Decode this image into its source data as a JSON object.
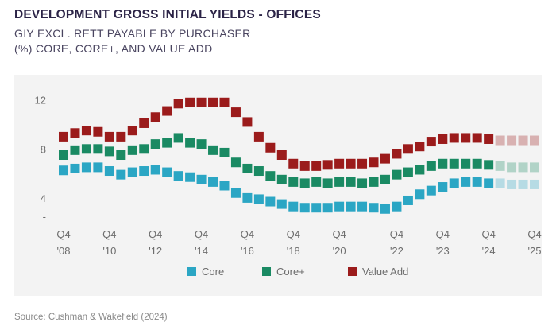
{
  "header": {
    "title": "DEVELOPMENT GROSS INITIAL YIELDS - OFFICES",
    "subtitle_line1": "GIY EXCL. RETT PAYABLE BY PURCHASER",
    "subtitle_line2": "(%) CORE, CORE+, AND VALUE ADD"
  },
  "footer": {
    "source": "Source: Cushman & Wakefield (2024)"
  },
  "chart_data": {
    "type": "scatter",
    "title": "",
    "xlabel": "",
    "ylabel": "",
    "ylim": [
      2.5,
      12.5
    ],
    "yticks": [
      {
        "value": 12,
        "label": "12"
      },
      {
        "value": 8,
        "label": "8"
      },
      {
        "value": 4,
        "label": "4"
      },
      {
        "value": 2.5,
        "label": "-"
      }
    ],
    "xticks": [
      {
        "index": 0,
        "label": [
          "Q4",
          "'08"
        ]
      },
      {
        "index": 4,
        "label": [
          "Q4",
          "'10"
        ]
      },
      {
        "index": 8,
        "label": [
          "Q4",
          "'12"
        ]
      },
      {
        "index": 12,
        "label": [
          "Q4",
          "'14"
        ]
      },
      {
        "index": 16,
        "label": [
          "Q4",
          "'16"
        ]
      },
      {
        "index": 20,
        "label": [
          "Q4",
          "'18"
        ]
      },
      {
        "index": 24,
        "label": [
          "Q4",
          "'20"
        ]
      },
      {
        "index": 29,
        "label": [
          "Q4",
          "'22"
        ]
      },
      {
        "index": 33,
        "label": [
          "Q4",
          "'23"
        ]
      },
      {
        "index": 37,
        "label": [
          "Q4",
          "'24"
        ]
      },
      {
        "index": 41,
        "label": [
          "Q4",
          "'25"
        ]
      }
    ],
    "forecast_start_index": 38,
    "grid": false,
    "legend_position": "bottom",
    "series": [
      {
        "name": "Core",
        "color": "#2ba6c4",
        "values": [
          6.25,
          6.4,
          6.5,
          6.5,
          6.2,
          5.9,
          6.1,
          6.2,
          6.3,
          6.1,
          5.8,
          5.7,
          5.5,
          5.3,
          5.0,
          4.4,
          4.0,
          3.9,
          3.7,
          3.5,
          3.3,
          3.2,
          3.2,
          3.2,
          3.3,
          3.3,
          3.3,
          3.2,
          3.1,
          3.3,
          3.8,
          4.3,
          4.6,
          4.9,
          5.2,
          5.3,
          5.3,
          5.2,
          5.2,
          5.1,
          5.1,
          5.1
        ]
      },
      {
        "name": "Core+",
        "color": "#1a8a63",
        "values": [
          7.5,
          7.9,
          8.0,
          8.0,
          7.8,
          7.5,
          7.9,
          8.0,
          8.4,
          8.5,
          8.9,
          8.5,
          8.4,
          7.9,
          7.7,
          6.9,
          6.4,
          6.2,
          5.8,
          5.5,
          5.3,
          5.2,
          5.3,
          5.2,
          5.3,
          5.3,
          5.2,
          5.3,
          5.5,
          5.9,
          6.1,
          6.3,
          6.6,
          6.8,
          6.8,
          6.8,
          6.8,
          6.7,
          6.6,
          6.5,
          6.5,
          6.5
        ]
      },
      {
        "name": "Value Add",
        "color": "#9b1b1b",
        "values": [
          9.0,
          9.3,
          9.5,
          9.4,
          9.0,
          9.0,
          9.5,
          10.1,
          10.6,
          11.1,
          11.7,
          11.8,
          11.8,
          11.8,
          11.8,
          11.0,
          10.2,
          9.0,
          8.1,
          7.5,
          6.8,
          6.6,
          6.6,
          6.7,
          6.8,
          6.8,
          6.8,
          6.9,
          7.2,
          7.6,
          8.0,
          8.2,
          8.6,
          8.8,
          8.9,
          8.9,
          8.9,
          8.8,
          8.7,
          8.7,
          8.7,
          8.7
        ]
      }
    ]
  }
}
